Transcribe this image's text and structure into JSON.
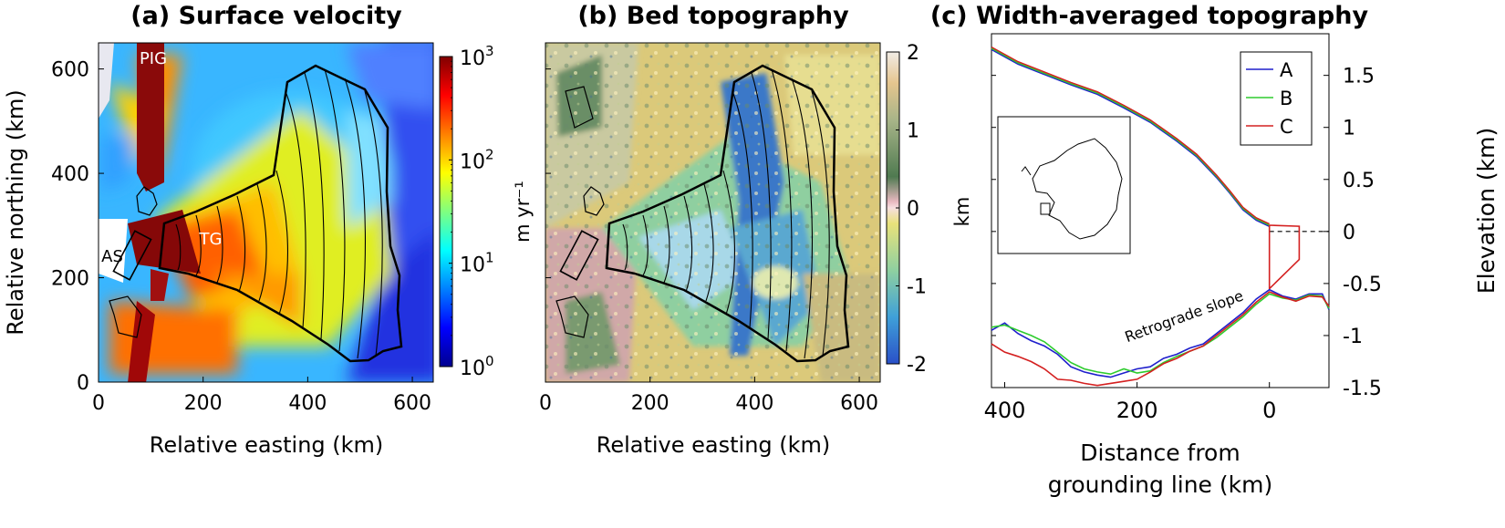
{
  "chart_data": [
    {
      "panel": "a",
      "type": "heatmap",
      "title": "(a) Surface velocity",
      "xlabel": "Relative easting (km)",
      "ylabel": "Relative northing (km)",
      "xlim": [
        0,
        640
      ],
      "ylim": [
        0,
        650
      ],
      "xticks": [
        "0",
        "200",
        "400",
        "600"
      ],
      "yticks": [
        "0",
        "200",
        "400",
        "600"
      ],
      "colorbar": {
        "label": "m yr⁻¹",
        "scale": "log",
        "ticks": [
          {
            "base": "10",
            "exp": "0",
            "value": 1
          },
          {
            "base": "10",
            "exp": "1",
            "value": 10
          },
          {
            "base": "10",
            "exp": "2",
            "value": 100
          },
          {
            "base": "10",
            "exp": "3",
            "value": 1000
          }
        ]
      },
      "annotations": [
        {
          "text": "PIG",
          "x": 105,
          "y": 605
        },
        {
          "text": "TG",
          "x": 185,
          "y": 318
        },
        {
          "text": "AS",
          "x": 20,
          "y": 185
        }
      ]
    },
    {
      "panel": "b",
      "type": "heatmap",
      "title": "(b) Bed topography",
      "xlabel": "Relative easting (km)",
      "ylabel": "",
      "xlim": [
        0,
        640
      ],
      "ylim": [
        0,
        650
      ],
      "xticks": [
        "0",
        "200",
        "400",
        "600"
      ],
      "colorbar": {
        "label": "km",
        "ticks": [
          "2",
          "1",
          "0",
          "-1",
          "-2"
        ],
        "range": [
          -2,
          2
        ]
      }
    },
    {
      "panel": "c",
      "type": "line",
      "title": "(c) Width-averaged topography",
      "xlabel": "Distance from grounding line (km)",
      "ylabel": "Elevation (km)",
      "xlim": [
        420,
        -90
      ],
      "ylim": [
        -1.5,
        1.9
      ],
      "xticks": [
        "400",
        "200",
        "0"
      ],
      "yticks": [
        "1.5",
        "1",
        "0.5",
        "0",
        "-0.5",
        "-1",
        "-1.5"
      ],
      "annotation": "Retrograde slope",
      "legend": {
        "placement": "top-right",
        "entries": [
          "A",
          "B",
          "C"
        ]
      },
      "colors": {
        "A": "#1f1fcc",
        "B": "#2ecc2e",
        "C": "#d42020"
      },
      "surface": [
        [
          420,
          1.76
        ],
        [
          380,
          1.62
        ],
        [
          340,
          1.52
        ],
        [
          300,
          1.42
        ],
        [
          260,
          1.33
        ],
        [
          220,
          1.2
        ],
        [
          180,
          1.06
        ],
        [
          140,
          0.88
        ],
        [
          110,
          0.73
        ],
        [
          80,
          0.53
        ],
        [
          60,
          0.38
        ],
        [
          40,
          0.22
        ],
        [
          20,
          0.12
        ],
        [
          0,
          0.06
        ]
      ],
      "shelf_top": [
        [
          0,
          0.06
        ],
        [
          -45,
          0.05
        ]
      ],
      "shelf_bottom": [
        [
          -45,
          -0.27
        ],
        [
          0,
          -0.55
        ]
      ],
      "series": [
        {
          "name": "A",
          "x": [
            420,
            400,
            380,
            360,
            340,
            320,
            300,
            280,
            260,
            240,
            220,
            200,
            180,
            160,
            140,
            120,
            100,
            80,
            60,
            40,
            20,
            0,
            -20,
            -40,
            -60,
            -80,
            -90
          ],
          "y": [
            -0.95,
            -0.88,
            -0.98,
            -1.05,
            -1.1,
            -1.18,
            -1.3,
            -1.35,
            -1.38,
            -1.4,
            -1.36,
            -1.32,
            -1.3,
            -1.22,
            -1.18,
            -1.12,
            -1.08,
            -0.98,
            -0.88,
            -0.78,
            -0.65,
            -0.56,
            -0.62,
            -0.65,
            -0.6,
            -0.6,
            -0.75
          ]
        },
        {
          "name": "B",
          "x": [
            420,
            400,
            380,
            360,
            340,
            320,
            300,
            280,
            260,
            240,
            220,
            200,
            180,
            160,
            140,
            120,
            100,
            80,
            60,
            40,
            20,
            0,
            -20,
            -40,
            -60,
            -80,
            -90
          ],
          "y": [
            -0.92,
            -0.9,
            -0.95,
            -1.0,
            -1.06,
            -1.16,
            -1.26,
            -1.32,
            -1.35,
            -1.37,
            -1.32,
            -1.36,
            -1.34,
            -1.26,
            -1.2,
            -1.15,
            -1.1,
            -1.02,
            -0.92,
            -0.82,
            -0.7,
            -0.6,
            -0.64,
            -0.66,
            -0.61,
            -0.62,
            -0.74
          ]
        },
        {
          "name": "C",
          "x": [
            420,
            400,
            380,
            360,
            340,
            320,
            300,
            280,
            260,
            240,
            220,
            200,
            180,
            160,
            140,
            120,
            100,
            80,
            60,
            40,
            20,
            0,
            -20,
            -40,
            -60,
            -80,
            -90
          ],
          "y": [
            -1.08,
            -1.16,
            -1.2,
            -1.25,
            -1.32,
            -1.42,
            -1.43,
            -1.46,
            -1.48,
            -1.46,
            -1.44,
            -1.42,
            -1.35,
            -1.27,
            -1.22,
            -1.15,
            -1.1,
            -1.0,
            -0.9,
            -0.8,
            -0.68,
            -0.58,
            -0.63,
            -0.67,
            -0.62,
            -0.63,
            -0.72
          ]
        }
      ]
    }
  ]
}
